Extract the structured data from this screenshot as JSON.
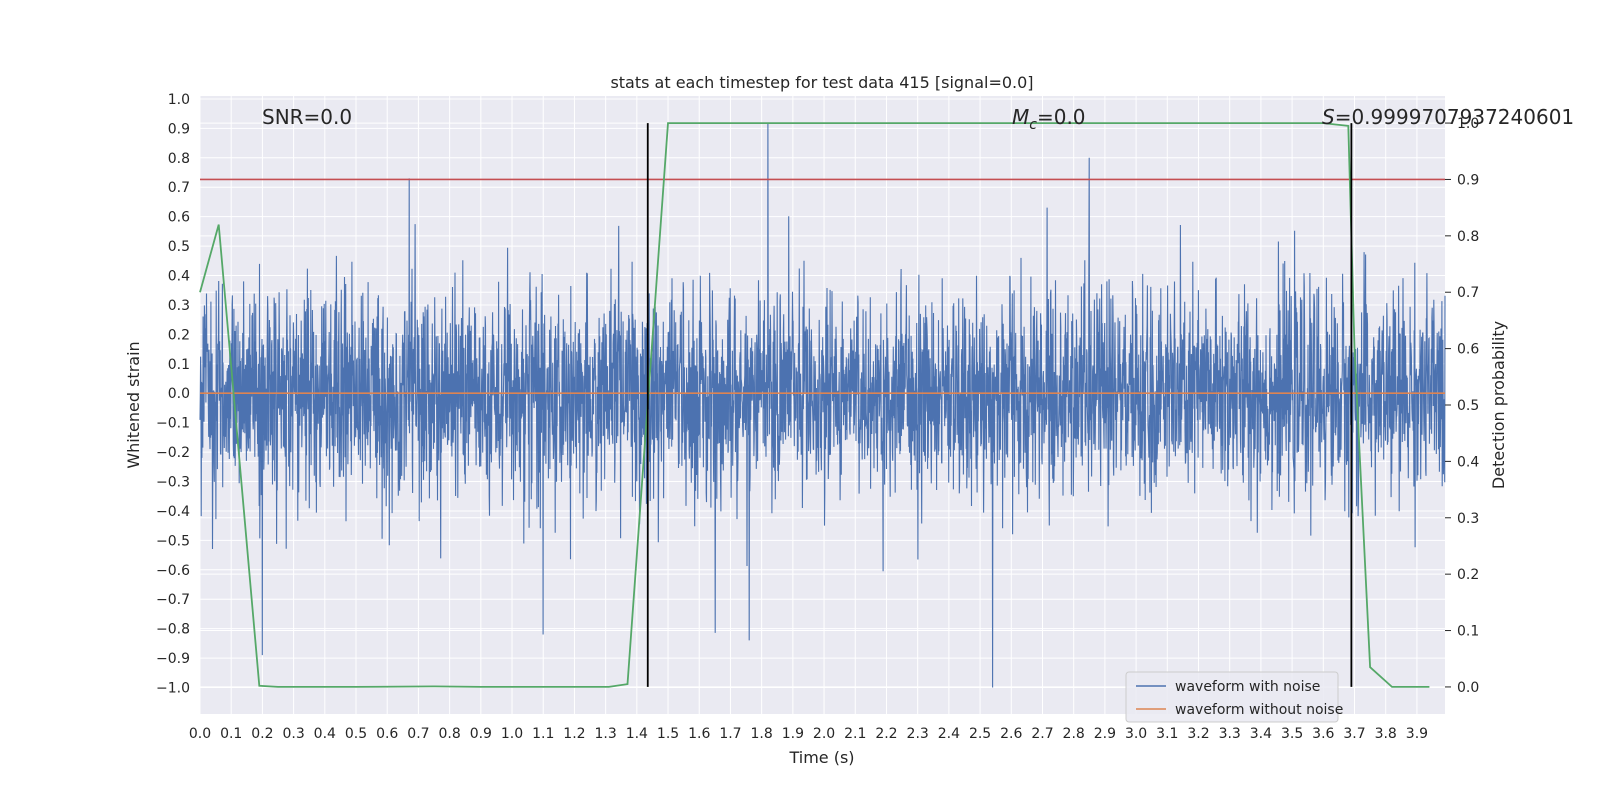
{
  "chart_data": {
    "type": "line",
    "title": "stats at each timestep for test data 415 [signal=0.0]",
    "xlabel": "Time (s)",
    "ylabel": "Whitened strain",
    "y2label": "Detection probability",
    "xlim": [
      0.0,
      3.99
    ],
    "ylim": [
      -1.09,
      1.01
    ],
    "y2lim": [
      -0.048,
      1.048
    ],
    "x_ticks": [
      "0.0",
      "0.1",
      "0.2",
      "0.3",
      "0.4",
      "0.5",
      "0.6",
      "0.7",
      "0.8",
      "0.9",
      "1.0",
      "1.1",
      "1.2",
      "1.3",
      "1.4",
      "1.5",
      "1.6",
      "1.7",
      "1.8",
      "1.9",
      "2.0",
      "2.1",
      "2.2",
      "2.3",
      "2.4",
      "2.5",
      "2.6",
      "2.7",
      "2.8",
      "2.9",
      "3.0",
      "3.1",
      "3.2",
      "3.3",
      "3.4",
      "3.5",
      "3.6",
      "3.7",
      "3.8",
      "3.9"
    ],
    "y_ticks": [
      "1.0",
      "0.9",
      "0.8",
      "0.7",
      "0.6",
      "0.5",
      "0.4",
      "0.3",
      "0.2",
      "0.1",
      "0.0",
      "−0.1",
      "−0.2",
      "−0.3",
      "−0.4",
      "−0.5",
      "−0.6",
      "−0.7",
      "−0.8",
      "−0.9",
      "−1.0"
    ],
    "y2_ticks": [
      "1.0",
      "0.9",
      "0.8",
      "0.7",
      "0.6",
      "0.5",
      "0.4",
      "0.3",
      "0.2",
      "0.1",
      "0.0"
    ],
    "grid": true,
    "legend_position": "bottom-right",
    "annotations": {
      "snr": "SNR=0.0",
      "mc_symbol": "M",
      "mc_sub": "c",
      "mc_value": "=0.0",
      "s_symbol": "S",
      "s_value": "=0.9999707937240601"
    },
    "series": [
      {
        "name": "waveform with noise",
        "color": "#4c72b0",
        "axis": "left",
        "style": "noise",
        "amplitude_typical": 0.45,
        "amplitude_max": 1.0,
        "notable_peaks": [
          [
            0.67,
            0.73
          ],
          [
            1.82,
            0.92
          ],
          [
            2.85,
            0.8
          ],
          [
            2.54,
            -1.0
          ],
          [
            1.76,
            -0.84
          ],
          [
            0.2,
            -0.89
          ],
          [
            1.1,
            -0.82
          ]
        ]
      },
      {
        "name": "waveform without noise",
        "color": "#dd8452",
        "axis": "left",
        "x": [
          0.0,
          3.99
        ],
        "y": [
          0.0,
          0.0
        ]
      },
      {
        "color": "#55a868",
        "axis": "right",
        "x": [
          0.0,
          0.06,
          0.19,
          0.25,
          0.5,
          0.75,
          0.9,
          1.0,
          1.31,
          1.37,
          1.5,
          1.8,
          2.5,
          3.0,
          3.6,
          3.68,
          3.7,
          3.75,
          3.82,
          3.94
        ],
        "y": [
          0.7,
          0.82,
          0.002,
          0.0,
          0.0,
          0.001,
          0.0,
          0.0,
          0.0,
          0.005,
          1.0,
          1.0,
          1.0,
          1.0,
          1.0,
          0.995,
          0.6,
          0.035,
          0.0,
          0.0
        ]
      }
    ],
    "threshold_line": {
      "axis": "right",
      "value": 0.9,
      "color": "#c44e52"
    },
    "vertical_lines": [
      {
        "x": 1.435,
        "y_range": [
          0.0,
          1.0
        ],
        "color": "#000000"
      },
      {
        "x": 3.69,
        "y_range": [
          0.0,
          1.0
        ],
        "color": "#000000"
      }
    ]
  }
}
